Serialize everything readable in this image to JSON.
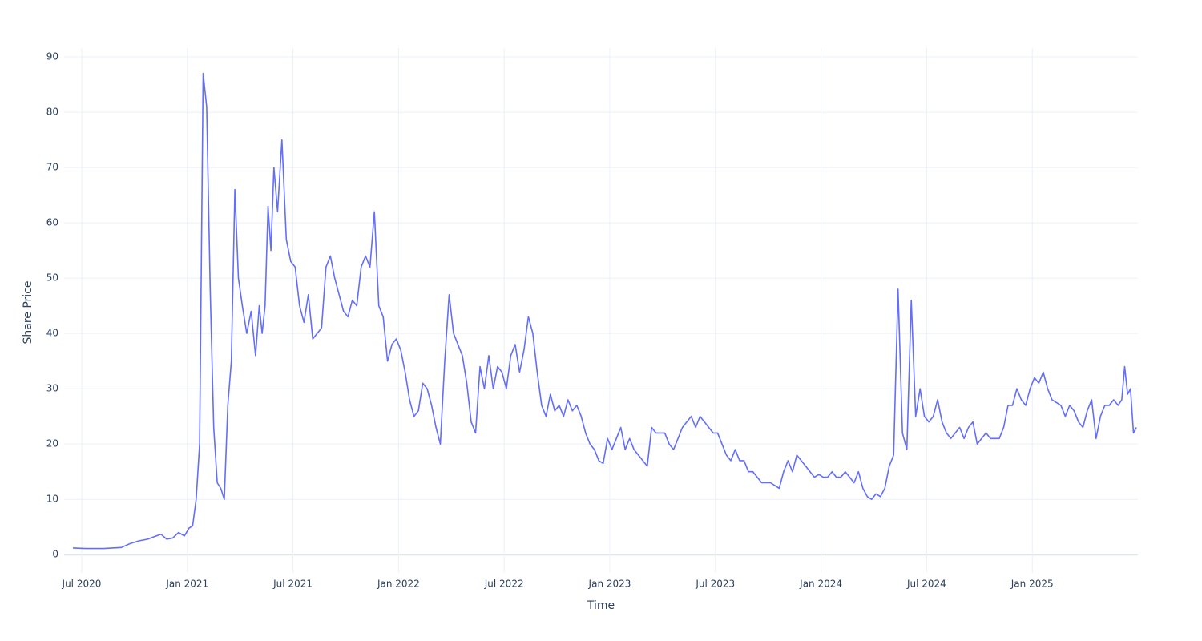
{
  "chart_data": {
    "type": "line",
    "x_label": "Time",
    "y_label": "Share Price",
    "color": "#636efa",
    "grid": true,
    "x": [
      "2020-06",
      "2020-07",
      "2020-07",
      "2020-08",
      "2020-08",
      "2020-09",
      "2020-09",
      "2020-10",
      "2020-10",
      "2020-11",
      "2020-11",
      "2020-11",
      "2020-12",
      "2020-12",
      "2020-12",
      "2021-01",
      "2021-01",
      "2021-01",
      "2021-01",
      "2021-01",
      "2021-02",
      "2021-02",
      "2021-02",
      "2021-02",
      "2021-02",
      "2021-03",
      "2021-03",
      "2021-03",
      "2021-03",
      "2021-03",
      "2021-04",
      "2021-04",
      "2021-04",
      "2021-04",
      "2021-05",
      "2021-05",
      "2021-05",
      "2021-05",
      "2021-05",
      "2021-05",
      "2021-06",
      "2021-06",
      "2021-06",
      "2021-06",
      "2021-07",
      "2021-07",
      "2021-07",
      "2021-07",
      "2021-08",
      "2021-08",
      "2021-08",
      "2021-08",
      "2021-09",
      "2021-09",
      "2021-09",
      "2021-09",
      "2021-10",
      "2021-10",
      "2021-10",
      "2021-10",
      "2021-11",
      "2021-11",
      "2021-11",
      "2021-11",
      "2021-12",
      "2021-12",
      "2021-12",
      "2021-12",
      "2022-01",
      "2022-01",
      "2022-01",
      "2022-01",
      "2022-02",
      "2022-02",
      "2022-02",
      "2022-02",
      "2022-03",
      "2022-03",
      "2022-03",
      "2022-03",
      "2022-04",
      "2022-04",
      "2022-04",
      "2022-04",
      "2022-05",
      "2022-05",
      "2022-05",
      "2022-05",
      "2022-06",
      "2022-06",
      "2022-06",
      "2022-06",
      "2022-07",
      "2022-07",
      "2022-07",
      "2022-07",
      "2022-08",
      "2022-08",
      "2022-08",
      "2022-08",
      "2022-09",
      "2022-09",
      "2022-09",
      "2022-09",
      "2022-10",
      "2022-10",
      "2022-10",
      "2022-10",
      "2022-11",
      "2022-11",
      "2022-11",
      "2022-11",
      "2022-12",
      "2022-12",
      "2022-12",
      "2022-12",
      "2023-01",
      "2023-01",
      "2023-01",
      "2023-01",
      "2023-02",
      "2023-02",
      "2023-02",
      "2023-02",
      "2023-03",
      "2023-03",
      "2023-03",
      "2023-03",
      "2023-04",
      "2023-04",
      "2023-04",
      "2023-04",
      "2023-05",
      "2023-05",
      "2023-05",
      "2023-05",
      "2023-06",
      "2023-06",
      "2023-06",
      "2023-06",
      "2023-07",
      "2023-07",
      "2023-07",
      "2023-07",
      "2023-08",
      "2023-08",
      "2023-08",
      "2023-08",
      "2023-09",
      "2023-09",
      "2023-09",
      "2023-09",
      "2023-10",
      "2023-10",
      "2023-10",
      "2023-10",
      "2023-11",
      "2023-11",
      "2023-11",
      "2023-11",
      "2023-12",
      "2023-12",
      "2023-12",
      "2023-12",
      "2024-01",
      "2024-01",
      "2024-01",
      "2024-01",
      "2024-02",
      "2024-02",
      "2024-02",
      "2024-02",
      "2024-03",
      "2024-03",
      "2024-03",
      "2024-03",
      "2024-04",
      "2024-04",
      "2024-04",
      "2024-04",
      "2024-05",
      "2024-05",
      "2024-05",
      "2024-05",
      "2024-06",
      "2024-06",
      "2024-06",
      "2024-06",
      "2024-07",
      "2024-07",
      "2024-07",
      "2024-07",
      "2024-08",
      "2024-08",
      "2024-08",
      "2024-08",
      "2024-09",
      "2024-09",
      "2024-09",
      "2024-09",
      "2024-10",
      "2024-10",
      "2024-10",
      "2024-10",
      "2024-11",
      "2024-11",
      "2024-11",
      "2024-11",
      "2024-12",
      "2024-12",
      "2024-12",
      "2024-12",
      "2025-01",
      "2025-01",
      "2025-01",
      "2025-01",
      "2025-02",
      "2025-02",
      "2025-02",
      "2025-02",
      "2025-03",
      "2025-03",
      "2025-03",
      "2025-03",
      "2025-04",
      "2025-04",
      "2025-04",
      "2025-04",
      "2025-05",
      "2025-05",
      "2025-05",
      "2025-05",
      "2025-06",
      "2025-06",
      "2025-06",
      "2025-06",
      "2025-06",
      "2025-06"
    ],
    "values": [
      1.2,
      1.1,
      1.1,
      1.1,
      1.2,
      1.3,
      2.0,
      2.5,
      2.8,
      3.3,
      3.7,
      2.8,
      3.0,
      4.0,
      3.4,
      4.8,
      5.2,
      10,
      20,
      87,
      81,
      48,
      23,
      13,
      12,
      10,
      27,
      35,
      66,
      50,
      45,
      40,
      44,
      36,
      45,
      40,
      45,
      63,
      55,
      70,
      62,
      75,
      57,
      53,
      52,
      45,
      42,
      47,
      39,
      40,
      41,
      52,
      54,
      50,
      47,
      44,
      43,
      46,
      45,
      52,
      54,
      52,
      62,
      45,
      43,
      35,
      38,
      39,
      37,
      33,
      28,
      25,
      26,
      31,
      30,
      27,
      23,
      20,
      35,
      47,
      40,
      38,
      36,
      31,
      24,
      22,
      34,
      30,
      36,
      30,
      34,
      33,
      30,
      36,
      38,
      33,
      37,
      43,
      40,
      33,
      27,
      25,
      29,
      26,
      27,
      25,
      28,
      26,
      27,
      25,
      22,
      20,
      19,
      17,
      16.5,
      21,
      19,
      21,
      23,
      19,
      21,
      19,
      18,
      17,
      16,
      23,
      22,
      22,
      22,
      20,
      19,
      21,
      23,
      24,
      25,
      23,
      25,
      24,
      23,
      22,
      22,
      20,
      18,
      17,
      19,
      17,
      17,
      15,
      15,
      14,
      13,
      13,
      13,
      12.5,
      12,
      15,
      17,
      15,
      18,
      17,
      16,
      15,
      14,
      14.5,
      14,
      14,
      15,
      14,
      14,
      15,
      14,
      13,
      15,
      12,
      10.5,
      10,
      11,
      10.5,
      12,
      16,
      18,
      48,
      22,
      19,
      46,
      25,
      30,
      25,
      24,
      25,
      28,
      24,
      22,
      21,
      22,
      23,
      21,
      23,
      24,
      20,
      21,
      22,
      21,
      21,
      21,
      23,
      27,
      27,
      30,
      28,
      27,
      30,
      32,
      31,
      33,
      30,
      28,
      27.5,
      27,
      25,
      27,
      26,
      24,
      23,
      26,
      28,
      21,
      25,
      27,
      27,
      28,
      27,
      28,
      34,
      29,
      30,
      22,
      23
    ],
    "xlim": [
      "2020-06",
      "2025-07"
    ],
    "xticks": [
      {
        "value": "2020-07",
        "label": "Jul 2020"
      },
      {
        "value": "2021-01",
        "label": "Jan 2021"
      },
      {
        "value": "2021-07",
        "label": "Jul 2021"
      },
      {
        "value": "2022-01",
        "label": "Jan 2022"
      },
      {
        "value": "2022-07",
        "label": "Jul 2022"
      },
      {
        "value": "2023-01",
        "label": "Jan 2023"
      },
      {
        "value": "2023-07",
        "label": "Jul 2023"
      },
      {
        "value": "2024-01",
        "label": "Jan 2024"
      },
      {
        "value": "2024-07",
        "label": "Jul 2024"
      },
      {
        "value": "2025-01",
        "label": "Jan 2025"
      }
    ],
    "ylim": [
      -3.3,
      91.6
    ],
    "yticks": [
      0,
      10,
      20,
      30,
      40,
      50,
      60,
      70,
      80,
      90
    ]
  }
}
